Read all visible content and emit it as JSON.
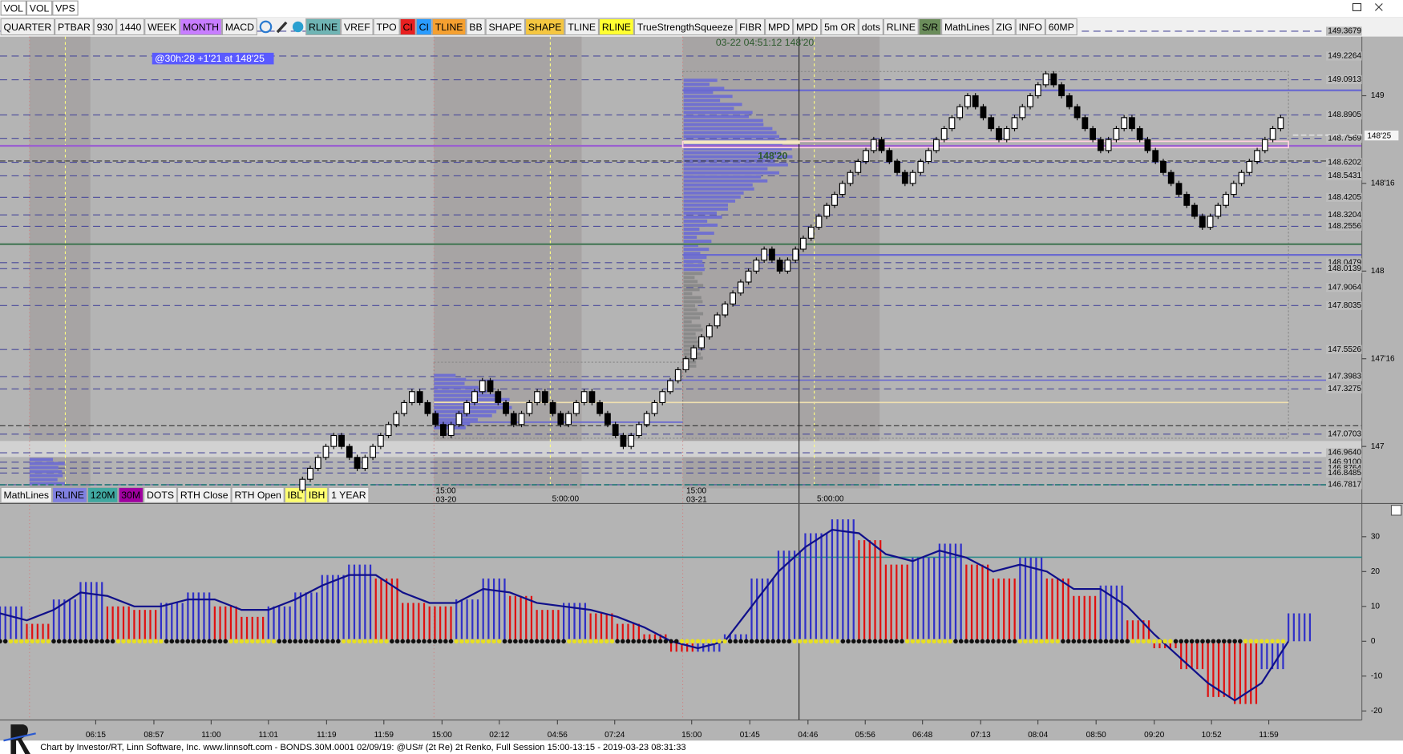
{
  "menu": [
    "VOL",
    "VOL",
    "VPS"
  ],
  "toolbar_left": [
    {
      "label": "QUARTER"
    },
    {
      "label": "PTBAR"
    },
    {
      "label": "930"
    },
    {
      "label": "1440"
    },
    {
      "label": "WEEK"
    },
    {
      "label": "MONTH",
      "color": "#c77dff"
    },
    {
      "label": "MACD"
    }
  ],
  "toolbar_right": [
    {
      "label": "RLINE",
      "color": "#6fb4b4"
    },
    {
      "label": "VREF"
    },
    {
      "label": "TPO"
    },
    {
      "label": "CI",
      "color": "#e82020"
    },
    {
      "label": "CI",
      "color": "#2a9cff"
    },
    {
      "label": "TLINE",
      "color": "#f5a030"
    },
    {
      "label": "BB"
    },
    {
      "label": "SHAPE"
    },
    {
      "label": "SHAPE",
      "color": "#f5c640"
    },
    {
      "label": "TLINE"
    },
    {
      "label": "RLINE",
      "color": "#ffff30"
    },
    {
      "label": "TrueStrengthSqueeze"
    },
    {
      "label": "FIBR"
    },
    {
      "label": "MPD"
    },
    {
      "label": "MPD"
    },
    {
      "label": "5m OR"
    },
    {
      "label": "dots"
    },
    {
      "label": "RLINE"
    },
    {
      "label": "S/R",
      "color": "#6a8c5a"
    },
    {
      "label": "MathLines"
    },
    {
      "label": "ZIG"
    },
    {
      "label": "INFO"
    },
    {
      "label": "60MP"
    }
  ],
  "sub_toolbar": [
    {
      "label": "MathLines"
    },
    {
      "label": "RLINE",
      "color": "#8080e0"
    },
    {
      "label": "120M",
      "color": "#40a8a0"
    },
    {
      "label": "30M",
      "color": "#a000a0"
    },
    {
      "label": "DOTS"
    },
    {
      "label": "RTH Close"
    },
    {
      "label": "RTH Open"
    },
    {
      "label": "IBL",
      "color": "#ffff70"
    },
    {
      "label": "IBH",
      "color": "#ffff70"
    },
    {
      "label": "1 YEAR"
    }
  ],
  "price_chart": {
    "ylim": [
      146.766,
      149.342
    ],
    "level_labels": [
      149.3679,
      149.2264,
      149.0913,
      148.8905,
      148.7569,
      148.6202,
      148.5431,
      148.4205,
      148.3204,
      148.2556,
      148.0479,
      148.0139,
      147.9064,
      147.8035,
      147.5526,
      147.3983,
      147.3275,
      147.0703,
      {
        "value": 146.964,
        "label": "146.9640"
      },
      {
        "value": 146.91,
        "label": "146.9100"
      },
      146.8764,
      146.8485,
      146.7817
    ],
    "yticks": [
      149,
      {
        "value": 148.5,
        "label": "148'16"
      },
      148,
      {
        "value": 147.5,
        "label": "147'16"
      },
      147
    ],
    "last_price_label": "148'25",
    "profile_label": "148'20",
    "cursor_readout": "03-22 04:51:12 148'20",
    "info_label": "@30h:28  +1'21 at 148'25",
    "session_labels": [
      {
        "time": "15:00",
        "date": "03-20"
      },
      {
        "time": "15:00",
        "date": "03-21"
      }
    ],
    "ib_labels": [
      "5:00:00",
      "5:00:00"
    ],
    "renko": {
      "closes": [
        146.75,
        146.8125,
        146.875,
        146.9375,
        147,
        147.0625,
        147,
        146.9375,
        146.875,
        146.9375,
        147,
        147.0625,
        147.125,
        147.1875,
        147.25,
        147.3125,
        147.25,
        147.1875,
        147.125,
        147.0625,
        147.125,
        147.1875,
        147.25,
        147.3125,
        147.375,
        147.3125,
        147.25,
        147.1875,
        147.125,
        147.1875,
        147.25,
        147.3125,
        147.25,
        147.1875,
        147.125,
        147.1875,
        147.25,
        147.3125,
        147.25,
        147.1875,
        147.125,
        147.0625,
        147,
        147.0625,
        147.125,
        147.1875,
        147.25,
        147.3125,
        147.375,
        147.4375,
        147.5,
        147.5625,
        147.625,
        147.6875,
        147.75,
        147.8125,
        147.875,
        147.9375,
        148,
        148.0625,
        148.125,
        148.0625,
        148,
        148.0625,
        148.125,
        148.1875,
        148.25,
        148.3125,
        148.375,
        148.4375,
        148.5,
        148.5625,
        148.625,
        148.6875,
        148.75,
        148.6875,
        148.625,
        148.5625,
        148.5,
        148.5625,
        148.625,
        148.6875,
        148.75,
        148.8125,
        148.875,
        148.9375,
        149,
        148.9375,
        148.875,
        148.8125,
        148.75,
        148.8125,
        148.875,
        148.9375,
        149,
        149.0625,
        149.125,
        149.0625,
        149,
        148.9375,
        148.875,
        148.8125,
        148.75,
        148.6875,
        148.75,
        148.8125,
        148.875,
        148.8125,
        148.75,
        148.6875,
        148.625,
        148.5625,
        148.5,
        148.4375,
        148.375,
        148.3125,
        148.25,
        148.3125,
        148.375,
        148.4375,
        148.5,
        148.5625,
        148.625,
        148.6875,
        148.75,
        148.8125,
        148.875
      ]
    }
  },
  "macd": {
    "ylim": [
      -22.6,
      39
    ],
    "yticks": [
      -20,
      -10,
      0,
      10,
      20,
      30
    ],
    "histogram": [
      10,
      5,
      12,
      17,
      10,
      9,
      11,
      14,
      10,
      7,
      10,
      14,
      19,
      22,
      18,
      11,
      10,
      12,
      18,
      13,
      9,
      11,
      8,
      5,
      2,
      -3,
      -3,
      2,
      18,
      26,
      31,
      35,
      29,
      22,
      24,
      28,
      22,
      18,
      24,
      18,
      13,
      16,
      6,
      -2,
      -8,
      -16,
      -18,
      -8,
      8
    ],
    "signal": [
      8,
      6,
      9,
      14,
      13,
      10,
      10,
      12,
      12,
      9,
      9,
      12,
      16,
      19,
      19,
      14,
      11,
      11,
      15,
      14,
      11,
      10,
      9,
      7,
      4,
      0,
      -2,
      0,
      10,
      20,
      27,
      32,
      31,
      25,
      23,
      26,
      24,
      20,
      22,
      20,
      15,
      15,
      10,
      2,
      -5,
      -12,
      -17,
      -12,
      0
    ]
  },
  "time_axis": [
    "06:15",
    "08:57",
    "11:00",
    "11:01",
    "11:19",
    "11:59",
    "15:00",
    "02:12",
    "04:56",
    "07:24",
    "15:00",
    "01:45",
    "04:46",
    "05:56",
    "06:48",
    "07:13",
    "08:04",
    "08:50",
    "09:20",
    "10:52",
    "11:59"
  ],
  "footer": "Chart by Investor/RT, Linn Software, Inc. www.linnsoft.com - BONDS.30M.0001   02/09/19: @US# (2t Re) 2t Renko, Full Session 15:00-13:15 - 2019-03-23 08:31:33"
}
